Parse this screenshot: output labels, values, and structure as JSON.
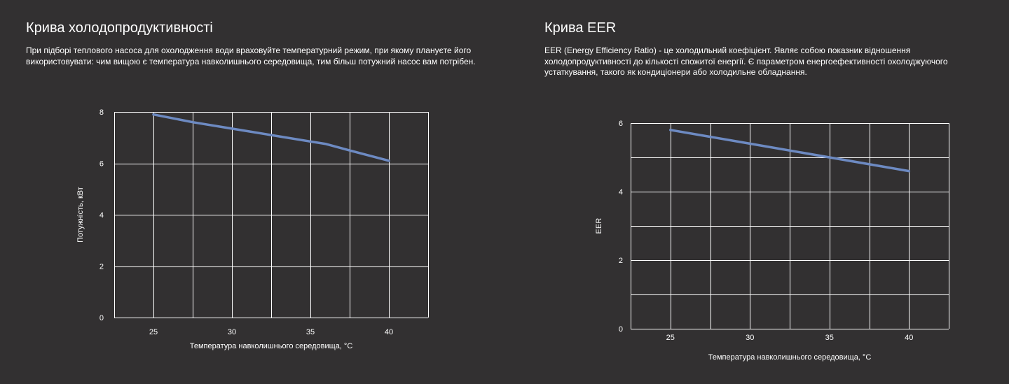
{
  "left": {
    "title": "Крива холодопродуктивності",
    "description": "При підборі теплового насоса для охолодження води враховуйте температурний режим, при якому плануєте його використовувати: чим вищою є температура навколишнього середовища, тим більш потужний насос вам потрібен."
  },
  "right": {
    "title": "Крива EER",
    "description": "EER (Energy Efficiency Ratio) - це холодильний коефіцієнт. Являє собою показник відношення холодопродуктивності до кількості спожитої енергії. Є параметром енергоефективності охолоджуючого устаткування, такого як кондиціонери або холодильне обладнання."
  },
  "colors": {
    "background": "#323031",
    "grid": "#ffffff",
    "series": "#6d8ac2"
  },
  "chart_data": [
    {
      "type": "line",
      "title": "",
      "xlabel": "Температура навколишнього середовища, °С",
      "ylabel": "Потужність, кВт",
      "xlim": [
        22.5,
        42.5
      ],
      "ylim": [
        0,
        8
      ],
      "x_ticks": [
        25,
        30,
        35,
        40
      ],
      "y_ticks": [
        0,
        2,
        4,
        6,
        8
      ],
      "x_grid_step": 2.5,
      "y_grid_step": 2,
      "grid": true,
      "series": [
        {
          "x": [
            25,
            27.5,
            30,
            32.5,
            35,
            36,
            37.5,
            40
          ],
          "y": [
            7.9,
            7.6,
            7.35,
            7.1,
            6.85,
            6.75,
            6.5,
            6.1
          ]
        }
      ]
    },
    {
      "type": "line",
      "title": "",
      "xlabel": "Температура навколишнього середовища, °С",
      "ylabel": "EER",
      "xlim": [
        22.5,
        42.5
      ],
      "ylim": [
        0,
        6
      ],
      "x_ticks": [
        25,
        30,
        35,
        40
      ],
      "y_ticks": [
        0,
        2,
        4,
        6
      ],
      "x_grid_step": 2.5,
      "y_grid_step": 1,
      "grid": true,
      "series": [
        {
          "x": [
            25,
            30,
            35,
            40
          ],
          "y": [
            5.8,
            5.4,
            5.0,
            4.6
          ]
        }
      ]
    }
  ]
}
